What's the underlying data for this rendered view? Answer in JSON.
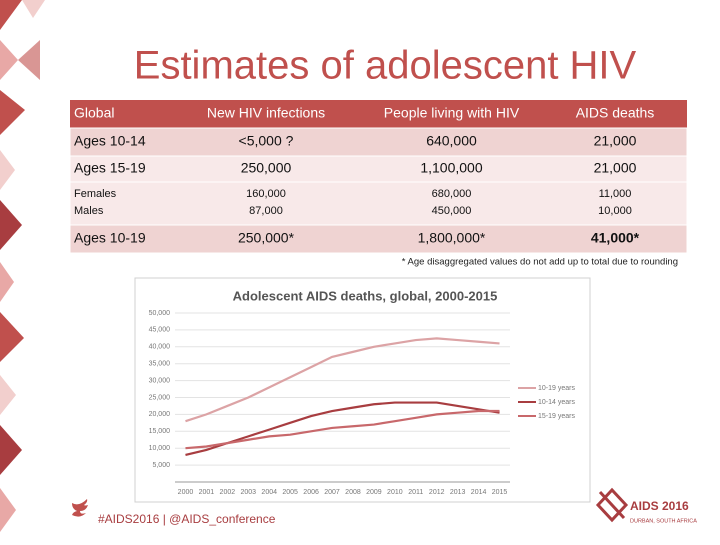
{
  "title": "Estimates of adolescent HIV",
  "table": {
    "header": [
      "Global",
      "New HIV infections",
      "People living with HIV",
      "AIDS deaths"
    ],
    "rows": [
      [
        [
          "Ages 10-14"
        ],
        [
          "<5,000 ?"
        ],
        [
          "640,000"
        ],
        [
          "21,000"
        ]
      ],
      [
        [
          "Ages 15-19"
        ],
        [
          "250,000"
        ],
        [
          "1,100,000"
        ],
        [
          "21,000"
        ]
      ],
      [
        [
          "Females",
          "Males"
        ],
        [
          "160,000",
          "87,000"
        ],
        [
          "680,000",
          "450,000"
        ],
        [
          "11,000",
          "10,000"
        ]
      ],
      [
        [
          "Ages 10-19"
        ],
        [
          "250,000*"
        ],
        [
          "1,800,000*"
        ],
        [
          "41,000*"
        ]
      ]
    ],
    "note": "* Age disaggregated values do not add up to total due to rounding"
  },
  "chart_data": {
    "type": "line",
    "title": "Adolescent AIDS deaths, global, 2000-2015",
    "x": [
      2000,
      2001,
      2002,
      2003,
      2004,
      2005,
      2006,
      2007,
      2008,
      2009,
      2010,
      2011,
      2012,
      2013,
      2014,
      2015
    ],
    "xlim": [
      1999.5,
      2015.5
    ],
    "ylim": [
      0,
      50000
    ],
    "yticks": [
      {
        "value": 5000,
        "label": "5,000"
      },
      {
        "value": 10000,
        "label": "10,000"
      },
      {
        "value": 15000,
        "label": "15,000"
      },
      {
        "value": 20000,
        "label": "20,000"
      },
      {
        "value": 25000,
        "label": "25,000"
      },
      {
        "value": 30000,
        "label": "30,000"
      },
      {
        "value": 35000,
        "label": "35,000"
      },
      {
        "value": 40000,
        "label": "40,000"
      },
      {
        "value": 45000,
        "label": "45,000"
      },
      {
        "value": 50000,
        "label": "50,000"
      }
    ],
    "grid": true,
    "legend": "right",
    "series": [
      {
        "name": "10-19 years",
        "color": "#dca3a5",
        "values": [
          18000,
          20000,
          22500,
          25000,
          28000,
          31000,
          34000,
          37000,
          38500,
          40000,
          41000,
          42000,
          42500,
          42000,
          41500,
          41000
        ]
      },
      {
        "name": "10-14 years",
        "color": "#a83d40",
        "values": [
          8000,
          9500,
          11500,
          13500,
          15500,
          17500,
          19500,
          21000,
          22000,
          23000,
          23500,
          23500,
          23500,
          22500,
          21500,
          20500
        ]
      },
      {
        "name": "15-19 years",
        "color": "#c8686b",
        "values": [
          10000,
          10500,
          11500,
          12500,
          13500,
          14000,
          15000,
          16000,
          16500,
          17000,
          18000,
          19000,
          20000,
          20500,
          21000,
          21000
        ]
      }
    ]
  },
  "footer": {
    "hashtag": "#AIDS2016 | @AIDS_conference",
    "logo": "AIDS 2016",
    "logo_sub": "DURBAN, SOUTH AFRICA"
  }
}
